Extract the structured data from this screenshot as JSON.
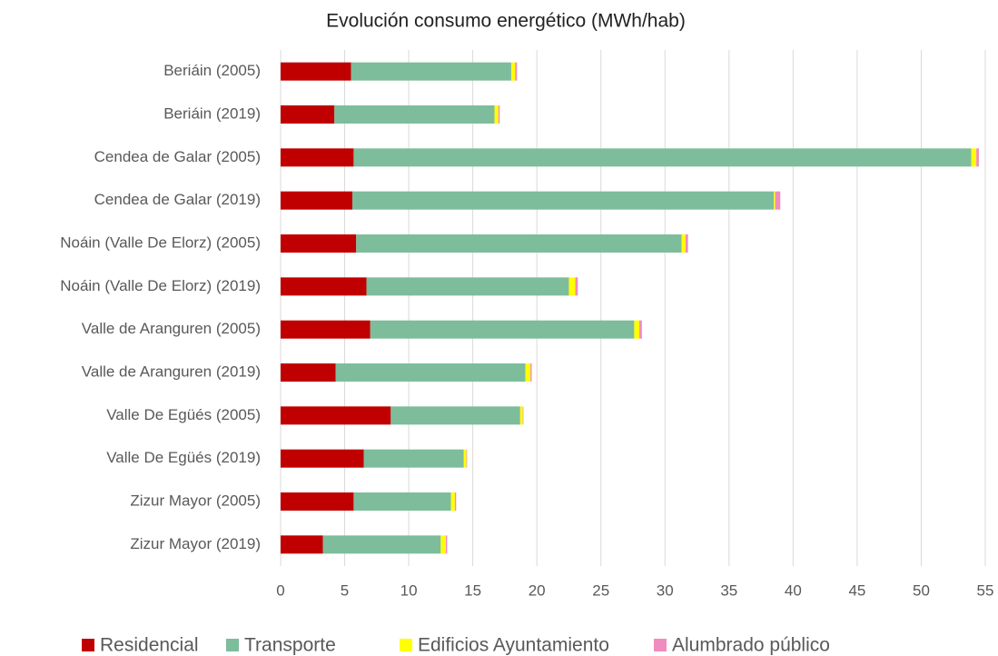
{
  "chart_data": {
    "type": "bar",
    "orientation": "horizontal",
    "stacked": true,
    "title": "Evolución consumo energético (MWh/hab)",
    "categories": [
      "Beriáin (2005)",
      "Beriáin (2019)",
      "Cendea de Galar (2005)",
      "Cendea de Galar (2019)",
      "Noáin (Valle De Elorz) (2005)",
      "Noáin (Valle De Elorz) (2019)",
      "Valle de Aranguren (2005)",
      "Valle de Aranguren (2019)",
      "Valle De Egüés (2005)",
      "Valle De Egüés (2019)",
      "Zizur Mayor (2005)",
      "Zizur Mayor (2019)"
    ],
    "series": [
      {
        "name": "Residencial",
        "color": "#c00000",
        "values": [
          5.5,
          4.2,
          5.7,
          5.6,
          5.9,
          6.7,
          7.0,
          4.3,
          8.6,
          6.5,
          5.7,
          3.3
        ]
      },
      {
        "name": "Transporte",
        "color": "#7dbd9b",
        "values": [
          12.5,
          12.5,
          48.2,
          32.9,
          25.4,
          15.8,
          20.6,
          14.8,
          10.1,
          7.8,
          7.6,
          9.2
        ]
      },
      {
        "name": "Edificios Ayuntamiento",
        "color": "#ffff00",
        "values": [
          0.3,
          0.3,
          0.4,
          0.1,
          0.3,
          0.5,
          0.4,
          0.4,
          0.2,
          0.2,
          0.3,
          0.4
        ]
      },
      {
        "name": "Alumbrado público",
        "color": "#f08cc0",
        "values": [
          0.15,
          0.1,
          0.2,
          0.4,
          0.2,
          0.2,
          0.2,
          0.1,
          0.05,
          0.05,
          0.1,
          0.1
        ]
      }
    ],
    "xlim": [
      0,
      55
    ],
    "xticks": [
      0,
      5,
      10,
      15,
      20,
      25,
      30,
      35,
      40,
      45,
      50,
      55
    ],
    "grid": true,
    "legend": "bottom"
  }
}
